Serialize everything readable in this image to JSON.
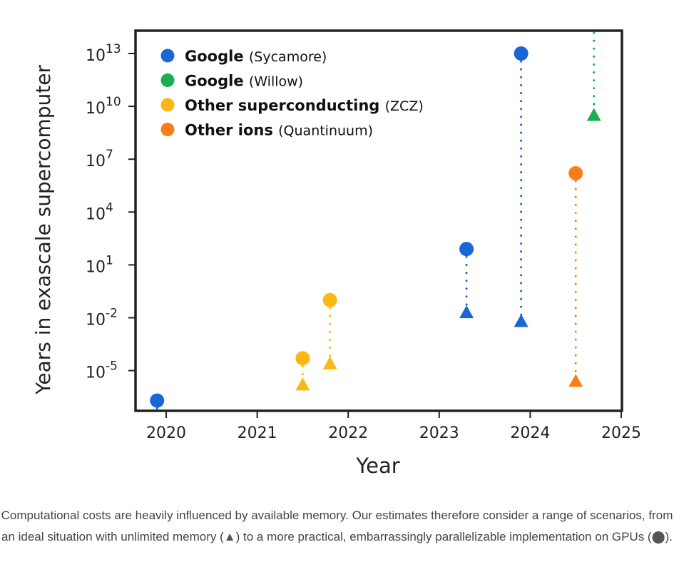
{
  "chart_data": {
    "type": "scatter",
    "title": "",
    "xlabel": "Year",
    "ylabel": "Years in exascale supercomputer",
    "yscale": "log",
    "xlim": [
      2019.8,
      2025
    ],
    "ylim_log10": [
      -7.3,
      14.3
    ],
    "x_ticks": [
      2020,
      2021,
      2022,
      2023,
      2024,
      2025
    ],
    "x_tick_labels": [
      "2020",
      "2021",
      "2022",
      "2023",
      "2024",
      "2025"
    ],
    "y_ticks_log10": [
      13,
      10,
      7,
      4,
      1,
      -2,
      -5
    ],
    "y_tick_labels": [
      {
        "base": "10",
        "exp": "13"
      },
      {
        "base": "10",
        "exp": "10"
      },
      {
        "base": "10",
        "exp": "7"
      },
      {
        "base": "10",
        "exp": "4"
      },
      {
        "base": "10",
        "exp": "1"
      },
      {
        "base": "10",
        "exp": "-2"
      },
      {
        "base": "10",
        "exp": "-5"
      }
    ],
    "grid": false,
    "legend_position": "top-left",
    "marker_legend": {
      "circle": "GPU implementation",
      "triangle": "unlimited memory"
    },
    "series": [
      {
        "name": "Google",
        "detail": "(Sycamore)",
        "color": "#1a66d6",
        "points": [
          {
            "x": 2019.9,
            "gpu_log10": -6.7,
            "ideal_log10": null
          },
          {
            "x": 2023.3,
            "gpu_log10": 1.9,
            "ideal_log10": -1.7
          },
          {
            "x": 2023.9,
            "gpu_log10": 13.0,
            "ideal_log10": -2.2
          }
        ]
      },
      {
        "name": "Google",
        "detail": "(Willow)",
        "color": "#1aae4e",
        "points": [
          {
            "x": 2024.7,
            "gpu_log10": null,
            "ideal_log10": 9.5
          }
        ]
      },
      {
        "name": "Other superconducting",
        "detail": "(ZCZ)",
        "color": "#fbb713",
        "points": [
          {
            "x": 2021.5,
            "gpu_log10": -4.3,
            "ideal_log10": -5.8
          },
          {
            "x": 2021.8,
            "gpu_log10": -1.0,
            "ideal_log10": -4.6
          }
        ]
      },
      {
        "name": "Other ions",
        "detail": "(Quantinuum)",
        "color": "#fa7d17",
        "points": [
          {
            "x": 2024.5,
            "gpu_log10": 6.2,
            "ideal_log10": -5.6
          }
        ]
      }
    ]
  },
  "caption": {
    "before_triangle": "Computational costs are heavily influenced by available memory. Our estimates therefore consider a range of scenarios, from an ideal situation with unlimited memory (",
    "triangle_glyph": "▲",
    "between": ") to a more practical, embarrassingly parallelizable implementation on GPUs (",
    "circle_glyph": "⬤",
    "after_circle": ")."
  }
}
